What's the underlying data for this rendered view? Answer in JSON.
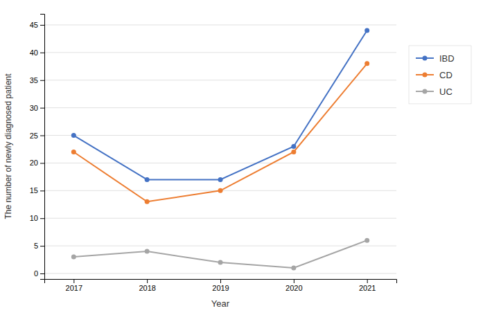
{
  "chart_data": {
    "type": "line",
    "x": [
      2017,
      2018,
      2019,
      2020,
      2021
    ],
    "series": [
      {
        "name": "IBD",
        "color": "#4472C4",
        "values": [
          25,
          17,
          17,
          23,
          44
        ]
      },
      {
        "name": "CD",
        "color": "#ED7D31",
        "values": [
          22,
          13,
          15,
          22,
          38
        ]
      },
      {
        "name": "UC",
        "color": "#A5A5A5",
        "values": [
          3,
          4,
          2,
          1,
          6
        ]
      }
    ],
    "xlabel": "Year",
    "ylabel": "The number of newly diagnosed patient",
    "xlim": [
      2016.6,
      2021.4
    ],
    "xticks": [
      2017,
      2018,
      2019,
      2020,
      2021
    ],
    "ylim": [
      -1,
      47
    ],
    "yticks": [
      0,
      5,
      10,
      15,
      20,
      25,
      30,
      35,
      40,
      45
    ],
    "grid": true,
    "legend": "right",
    "marker": "circle"
  }
}
